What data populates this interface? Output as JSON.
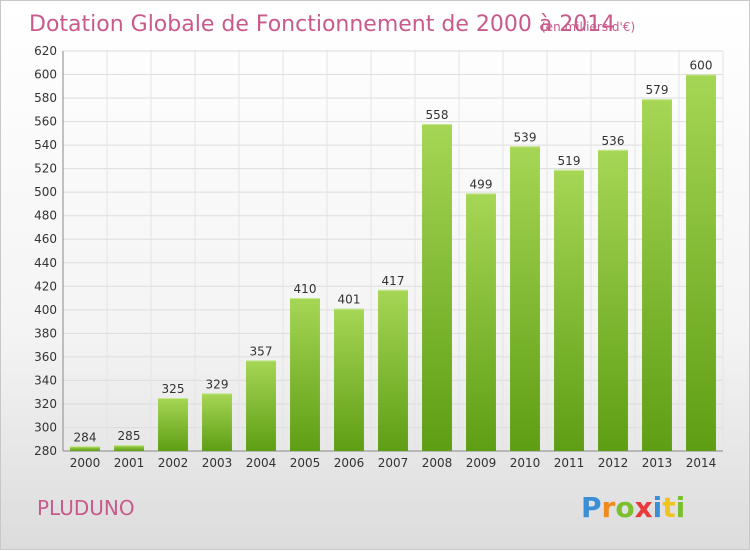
{
  "chart_data": {
    "type": "bar",
    "title": "Dotation Globale de Fonctionnement de 2000 à 2014",
    "subtitle": "(en milliers d'€)",
    "categories": [
      "2000",
      "2001",
      "2002",
      "2003",
      "2004",
      "2005",
      "2006",
      "2007",
      "2008",
      "2009",
      "2010",
      "2011",
      "2012",
      "2013",
      "2014"
    ],
    "values": [
      284,
      285,
      325,
      329,
      357,
      410,
      401,
      417,
      558,
      499,
      539,
      519,
      536,
      579,
      600
    ],
    "ylim": [
      280,
      620
    ],
    "yticks": [
      280,
      300,
      320,
      340,
      360,
      380,
      400,
      420,
      440,
      460,
      480,
      500,
      520,
      540,
      560,
      580,
      600,
      620
    ],
    "grid": true,
    "bar_color": "#7cbf2e",
    "bar_color_light": "#a6d655",
    "bar_color_dark": "#5e9e14"
  },
  "commune": "PLUDUNO",
  "logo": {
    "text": "Proxiti",
    "letters": [
      {
        "ch": "P",
        "color": "#3a8fd6"
      },
      {
        "ch": "r",
        "color": "#f08a1c"
      },
      {
        "ch": "o",
        "color": "#7cbf2e"
      },
      {
        "ch": "x",
        "color": "#e83a3a"
      },
      {
        "ch": "i",
        "color": "#3a8fd6"
      },
      {
        "ch": "t",
        "color": "#f0c41c"
      },
      {
        "ch": "i",
        "color": "#7cbf2e"
      }
    ]
  }
}
